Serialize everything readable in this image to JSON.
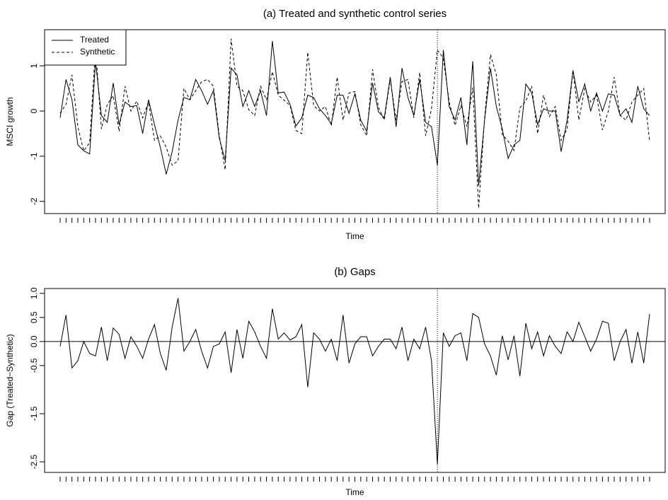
{
  "chart_data": [
    {
      "type": "line",
      "title": "(a) Treated and synthetic control series",
      "xlabel": "Time",
      "ylabel": "MSCI growth",
      "categories": [
        null,
        null,
        null,
        null,
        null,
        null,
        null,
        null,
        null,
        null,
        null,
        null,
        null,
        null,
        null,
        null,
        null,
        null,
        null,
        null,
        null,
        null,
        null,
        null,
        null,
        null,
        null,
        null,
        null,
        null,
        null,
        null,
        null,
        null,
        null,
        null,
        null,
        null,
        null,
        null,
        null,
        null,
        null,
        null,
        null,
        null,
        null,
        null,
        null,
        null,
        null,
        null,
        null,
        null,
        null,
        null,
        null,
        null,
        null,
        null,
        null,
        null,
        null,
        null,
        null,
        null,
        null,
        null,
        null,
        null,
        null,
        null,
        null,
        null,
        null,
        null,
        null,
        null,
        null,
        null,
        null,
        null,
        null,
        null,
        null,
        null,
        null,
        null,
        null,
        null,
        null,
        null,
        null,
        null,
        null,
        null,
        null,
        null,
        null,
        null,
        null
      ],
      "series": [
        {
          "name": "Treated",
          "color": "#000000",
          "dash": "solid",
          "values": [
            -0.15,
            0.7,
            0.25,
            -0.75,
            -0.88,
            -0.95,
            1.1,
            -0.1,
            -0.25,
            0.62,
            -0.3,
            0.2,
            0.1,
            0.12,
            -0.5,
            0.25,
            -0.3,
            -0.8,
            -1.4,
            -0.9,
            -0.2,
            0.3,
            0.25,
            0.7,
            0.45,
            0.15,
            0.45,
            -0.6,
            -1.1,
            0.95,
            0.8,
            0.1,
            0.45,
            0.1,
            0.45,
            -0.1,
            1.55,
            0.4,
            0.42,
            0.15,
            -0.33,
            -0.15,
            0.35,
            0.3,
            0.05,
            -0.1,
            -0.28,
            0.35,
            0.35,
            -0.05,
            0.38,
            -0.2,
            -0.45,
            0.62,
            -0.02,
            -0.15,
            0.75,
            -0.35,
            0.95,
            0.3,
            -0.1,
            0.7,
            -0.25,
            -0.35,
            -1.2,
            1.35,
            0.1,
            -0.2,
            0.3,
            -0.75,
            1.1,
            -1.65,
            -0.2,
            0.95,
            0.1,
            -0.4,
            -1.05,
            -0.75,
            -0.65,
            0.6,
            0.4,
            -0.3,
            0.05,
            0.0,
            0.0,
            -0.9,
            -0.2,
            0.9,
            0.2,
            0.6,
            0.0,
            0.4,
            0.0,
            0.38,
            0.35,
            -0.1,
            0.05,
            -0.25,
            0.55,
            0.05,
            -0.1
          ]
        },
        {
          "name": "Synthetic",
          "color": "#000000",
          "dash": "dashed",
          "values": [
            -0.05,
            0.15,
            0.8,
            -0.35,
            -0.88,
            -0.7,
            1.4,
            -0.4,
            0.15,
            0.34,
            -0.45,
            0.55,
            0.0,
            0.22,
            -0.15,
            0.2,
            -0.65,
            -0.55,
            -0.8,
            -1.2,
            -1.1,
            0.5,
            0.25,
            0.45,
            0.65,
            0.7,
            0.55,
            -0.55,
            -1.3,
            1.6,
            0.55,
            0.45,
            0.03,
            -0.1,
            0.55,
            0.25,
            0.87,
            0.35,
            0.24,
            0.12,
            -0.43,
            -0.5,
            1.3,
            0.12,
            0.0,
            0.1,
            -0.33,
            0.75,
            -0.2,
            0.4,
            0.43,
            -0.3,
            -0.55,
            0.92,
            0.08,
            -0.2,
            0.7,
            -0.2,
            0.65,
            0.7,
            -0.15,
            0.85,
            -0.55,
            0.05,
            1.35,
            1.17,
            0.2,
            -0.32,
            0.12,
            -0.35,
            0.52,
            -2.15,
            -0.15,
            1.25,
            0.8,
            -0.52,
            -0.67,
            -0.87,
            0.07,
            0.22,
            0.55,
            -0.5,
            0.35,
            -0.12,
            0.1,
            -0.65,
            -0.4,
            0.9,
            -0.2,
            0.5,
            0.2,
            0.35,
            -0.42,
            0.0,
            0.75,
            -0.1,
            -0.2,
            0.2,
            0.35,
            0.5,
            -0.67
          ]
        }
      ],
      "ylim": [
        -2.27,
        1.8
      ],
      "yticks": [
        -2,
        -1,
        0,
        1
      ],
      "legend": "top-left",
      "vline_index": 64
    },
    {
      "type": "line",
      "title": "(b) Gaps",
      "xlabel": "Time",
      "ylabel": "Gap (Treated−Synthetic)",
      "categories": [
        null,
        null,
        null,
        null,
        null,
        null,
        null,
        null,
        null,
        null,
        null,
        null,
        null,
        null,
        null,
        null,
        null,
        null,
        null,
        null,
        null,
        null,
        null,
        null,
        null,
        null,
        null,
        null,
        null,
        null,
        null,
        null,
        null,
        null,
        null,
        null,
        null,
        null,
        null,
        null,
        null,
        null,
        null,
        null,
        null,
        null,
        null,
        null,
        null,
        null,
        null,
        null,
        null,
        null,
        null,
        null,
        null,
        null,
        null,
        null,
        null,
        null,
        null,
        null,
        null,
        null,
        null,
        null,
        null,
        null,
        null,
        null,
        null,
        null,
        null,
        null,
        null,
        null,
        null,
        null,
        null,
        null,
        null,
        null,
        null,
        null,
        null,
        null,
        null,
        null,
        null,
        null,
        null,
        null,
        null,
        null,
        null,
        null,
        null,
        null,
        null
      ],
      "color": "#000000",
      "values": [
        -0.1,
        0.55,
        -0.55,
        -0.4,
        0.0,
        -0.25,
        -0.3,
        0.3,
        -0.4,
        0.28,
        0.15,
        -0.35,
        0.1,
        -0.1,
        -0.35,
        0.05,
        0.35,
        -0.25,
        -0.6,
        0.3,
        0.9,
        -0.2,
        0.0,
        0.25,
        -0.2,
        -0.55,
        -0.1,
        -0.05,
        0.2,
        -0.65,
        0.25,
        -0.35,
        0.42,
        0.2,
        -0.1,
        -0.35,
        0.68,
        0.05,
        0.18,
        0.03,
        0.1,
        0.35,
        -0.95,
        0.18,
        0.05,
        -0.2,
        0.05,
        -0.4,
        0.55,
        -0.45,
        -0.05,
        0.1,
        0.1,
        -0.3,
        -0.1,
        0.05,
        0.05,
        -0.15,
        0.3,
        -0.4,
        0.05,
        -0.15,
        0.3,
        -0.4,
        -2.55,
        0.18,
        -0.1,
        0.12,
        0.18,
        -0.4,
        0.58,
        0.5,
        -0.05,
        -0.3,
        -0.7,
        0.12,
        -0.38,
        0.12,
        -0.72,
        0.38,
        -0.15,
        0.2,
        -0.3,
        0.12,
        -0.1,
        -0.25,
        0.2,
        0.0,
        0.4,
        0.1,
        -0.2,
        0.05,
        0.42,
        0.38,
        -0.4,
        0.0,
        0.25,
        -0.45,
        0.2,
        -0.45,
        0.57
      ],
      "ylim": [
        -2.72,
        1.1
      ],
      "yticks": [
        {
          "value": 1.0,
          "label": "1.0"
        },
        0.5,
        {
          "value": 0.0,
          "label": "0.0"
        },
        -0.5,
        -1.5,
        -2.5
      ],
      "hline": 0,
      "vline_index": 64
    }
  ]
}
